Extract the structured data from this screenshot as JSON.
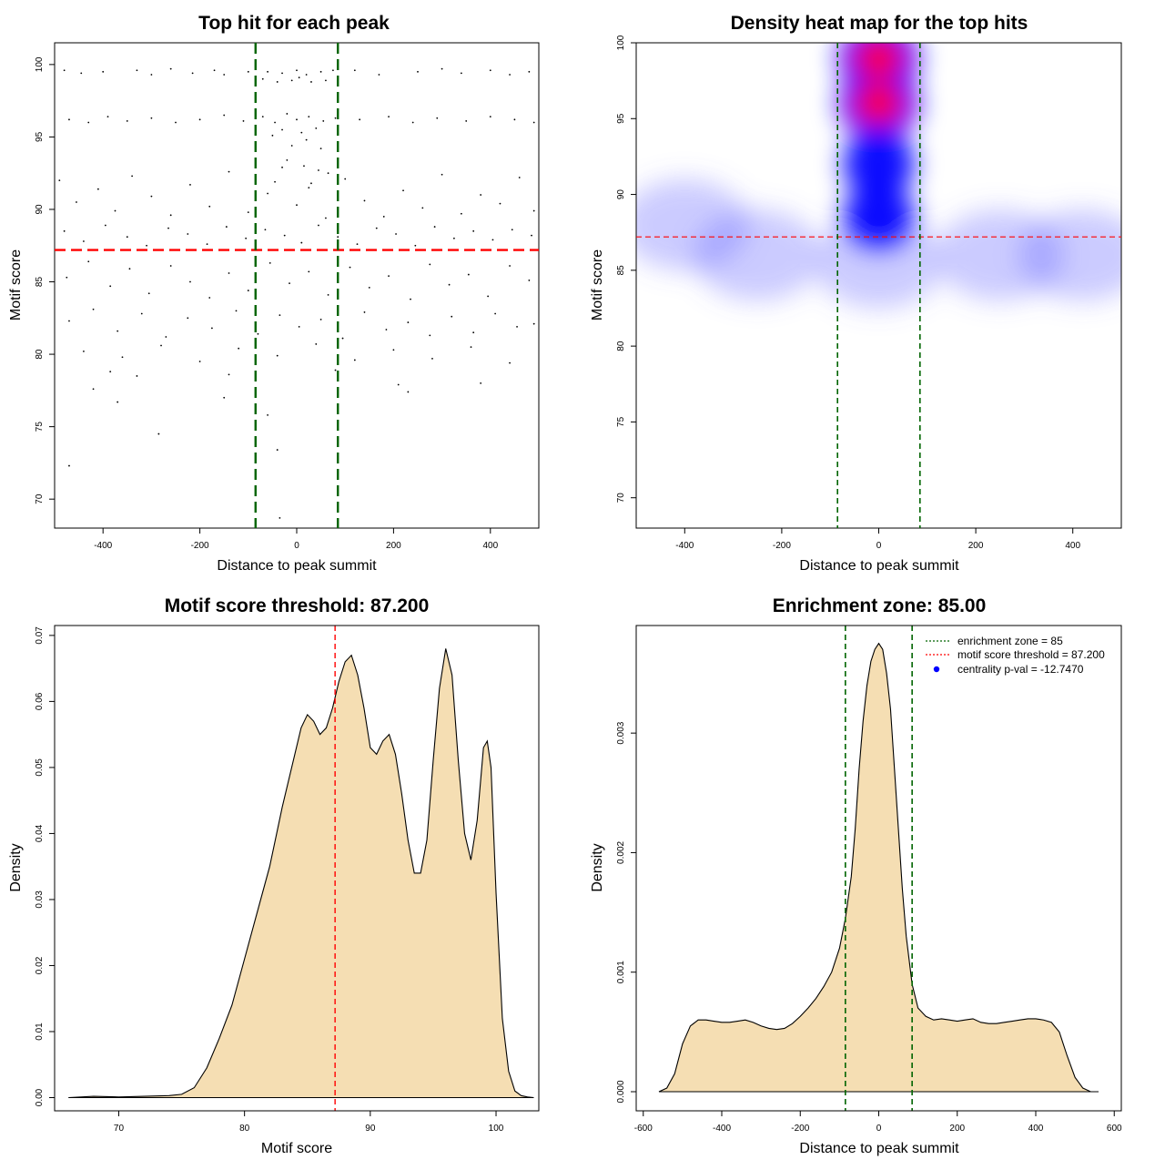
{
  "chart_data": [
    {
      "type": "scatter",
      "title": "Top hit for each peak",
      "xlabel": "Distance to peak summit",
      "ylabel": "Motif score",
      "xlim": [
        -500,
        500
      ],
      "ylim": [
        68,
        101.5
      ],
      "xticks": [
        -400,
        -200,
        0,
        200,
        400
      ],
      "yticks": [
        70,
        75,
        80,
        85,
        90,
        95,
        100
      ],
      "hline": {
        "y": 87.2,
        "color": "#ff0000"
      },
      "vlines": {
        "x": [
          -85,
          85
        ],
        "color": "#006400"
      },
      "point_color": "#000000",
      "points": [
        [
          -470,
          72.3
        ],
        [
          -285,
          74.5
        ],
        [
          -60,
          75.8
        ],
        [
          -40,
          73.4
        ],
        [
          -35,
          68.7
        ],
        [
          -370,
          76.7
        ],
        [
          -420,
          77.6
        ],
        [
          -150,
          77.0
        ],
        [
          -140,
          78.6
        ],
        [
          230,
          77.4
        ],
        [
          210,
          77.9
        ],
        [
          380,
          78.0
        ],
        [
          -385,
          78.8
        ],
        [
          80,
          78.9
        ],
        [
          -330,
          78.5
        ],
        [
          -480,
          99.6
        ],
        [
          -445,
          99.4
        ],
        [
          -400,
          99.5
        ],
        [
          -330,
          99.6
        ],
        [
          -300,
          99.3
        ],
        [
          -260,
          99.7
        ],
        [
          -215,
          99.4
        ],
        [
          -170,
          99.6
        ],
        [
          -150,
          99.3
        ],
        [
          -100,
          99.5
        ],
        [
          -60,
          99.5
        ],
        [
          -30,
          99.4
        ],
        [
          0,
          99.6
        ],
        [
          20,
          99.3
        ],
        [
          50,
          99.5
        ],
        [
          75,
          99.6
        ],
        [
          120,
          99.6
        ],
        [
          170,
          99.3
        ],
        [
          250,
          99.5
        ],
        [
          300,
          99.7
        ],
        [
          340,
          99.4
        ],
        [
          400,
          99.6
        ],
        [
          440,
          99.3
        ],
        [
          480,
          99.5
        ],
        [
          -40,
          98.8
        ],
        [
          -10,
          98.9
        ],
        [
          30,
          98.8
        ],
        [
          60,
          98.9
        ],
        [
          -70,
          99.0
        ],
        [
          5,
          99.1
        ],
        [
          -470,
          96.2
        ],
        [
          -430,
          96.0
        ],
        [
          -390,
          96.4
        ],
        [
          -350,
          96.1
        ],
        [
          -300,
          96.3
        ],
        [
          -250,
          96.0
        ],
        [
          -200,
          96.2
        ],
        [
          -150,
          96.5
        ],
        [
          -110,
          96.1
        ],
        [
          -70,
          96.4
        ],
        [
          -45,
          96.0
        ],
        [
          -20,
          96.6
        ],
        [
          0,
          96.2
        ],
        [
          25,
          96.4
        ],
        [
          55,
          96.1
        ],
        [
          80,
          96.3
        ],
        [
          130,
          96.2
        ],
        [
          190,
          96.4
        ],
        [
          240,
          96.0
        ],
        [
          290,
          96.3
        ],
        [
          350,
          96.1
        ],
        [
          400,
          96.4
        ],
        [
          450,
          96.2
        ],
        [
          490,
          96.0
        ],
        [
          -30,
          95.5
        ],
        [
          10,
          95.3
        ],
        [
          40,
          95.6
        ],
        [
          -50,
          95.1
        ],
        [
          20,
          94.8
        ],
        [
          -10,
          94.4
        ],
        [
          50,
          94.2
        ],
        [
          -490,
          92.0
        ],
        [
          -455,
          90.5
        ],
        [
          -410,
          91.4
        ],
        [
          -375,
          89.9
        ],
        [
          -340,
          92.3
        ],
        [
          -300,
          90.9
        ],
        [
          -260,
          89.6
        ],
        [
          -220,
          91.7
        ],
        [
          -180,
          90.2
        ],
        [
          -140,
          92.6
        ],
        [
          -100,
          89.8
        ],
        [
          -60,
          91.1
        ],
        [
          -30,
          92.9
        ],
        [
          0,
          90.3
        ],
        [
          30,
          91.8
        ],
        [
          60,
          89.4
        ],
        [
          100,
          92.1
        ],
        [
          140,
          90.6
        ],
        [
          180,
          89.5
        ],
        [
          220,
          91.3
        ],
        [
          260,
          90.1
        ],
        [
          300,
          92.4
        ],
        [
          340,
          89.7
        ],
        [
          380,
          91.0
        ],
        [
          420,
          90.4
        ],
        [
          460,
          92.2
        ],
        [
          490,
          89.9
        ],
        [
          -20,
          93.4
        ],
        [
          15,
          93.0
        ],
        [
          45,
          92.7
        ],
        [
          -45,
          91.9
        ],
        [
          25,
          91.5
        ],
        [
          65,
          92.5
        ],
        [
          -480,
          88.5
        ],
        [
          -440,
          87.8
        ],
        [
          -395,
          88.9
        ],
        [
          -350,
          88.1
        ],
        [
          -310,
          87.5
        ],
        [
          -265,
          88.7
        ],
        [
          -225,
          88.3
        ],
        [
          -185,
          87.6
        ],
        [
          -145,
          88.8
        ],
        [
          -105,
          88.0
        ],
        [
          -65,
          88.6
        ],
        [
          -25,
          88.2
        ],
        [
          10,
          87.7
        ],
        [
          45,
          88.9
        ],
        [
          85,
          88.1
        ],
        [
          125,
          87.6
        ],
        [
          165,
          88.7
        ],
        [
          205,
          88.3
        ],
        [
          245,
          87.5
        ],
        [
          285,
          88.8
        ],
        [
          325,
          88.0
        ],
        [
          365,
          88.5
        ],
        [
          405,
          87.9
        ],
        [
          445,
          88.6
        ],
        [
          485,
          88.2
        ],
        [
          -475,
          85.3
        ],
        [
          -430,
          86.4
        ],
        [
          -385,
          84.7
        ],
        [
          -345,
          85.9
        ],
        [
          -305,
          84.2
        ],
        [
          -260,
          86.1
        ],
        [
          -220,
          85.0
        ],
        [
          -180,
          83.9
        ],
        [
          -140,
          85.6
        ],
        [
          -100,
          84.4
        ],
        [
          -55,
          86.3
        ],
        [
          -15,
          84.9
        ],
        [
          25,
          85.7
        ],
        [
          65,
          84.1
        ],
        [
          110,
          86.0
        ],
        [
          150,
          84.6
        ],
        [
          190,
          85.4
        ],
        [
          235,
          83.8
        ],
        [
          275,
          86.2
        ],
        [
          315,
          84.8
        ],
        [
          355,
          85.5
        ],
        [
          395,
          84.0
        ],
        [
          440,
          86.1
        ],
        [
          480,
          85.1
        ],
        [
          -470,
          82.3
        ],
        [
          -420,
          83.1
        ],
        [
          -370,
          81.6
        ],
        [
          -320,
          82.8
        ],
        [
          -270,
          81.2
        ],
        [
          -225,
          82.5
        ],
        [
          -175,
          81.8
        ],
        [
          -125,
          83.0
        ],
        [
          -80,
          81.4
        ],
        [
          -35,
          82.7
        ],
        [
          5,
          81.9
        ],
        [
          50,
          82.4
        ],
        [
          95,
          81.1
        ],
        [
          140,
          82.9
        ],
        [
          185,
          81.7
        ],
        [
          230,
          82.2
        ],
        [
          275,
          81.3
        ],
        [
          320,
          82.6
        ],
        [
          365,
          81.5
        ],
        [
          410,
          82.8
        ],
        [
          455,
          81.9
        ],
        [
          490,
          82.1
        ],
        [
          -440,
          80.2
        ],
        [
          -360,
          79.8
        ],
        [
          -280,
          80.6
        ],
        [
          -200,
          79.5
        ],
        [
          -120,
          80.4
        ],
        [
          -40,
          79.9
        ],
        [
          40,
          80.7
        ],
        [
          120,
          79.6
        ],
        [
          200,
          80.3
        ],
        [
          280,
          79.7
        ],
        [
          360,
          80.5
        ],
        [
          440,
          79.4
        ]
      ]
    },
    {
      "type": "heatmap",
      "title": "Density heat map for the top hits",
      "xlabel": "Distance to peak summit",
      "ylabel": "Motif score",
      "xlim": [
        -500,
        500
      ],
      "ylim": [
        68,
        100
      ],
      "xticks": [
        -400,
        -200,
        0,
        200,
        400
      ],
      "yticks": [
        70,
        75,
        80,
        85,
        90,
        95,
        100
      ],
      "hline": {
        "y": 87.2,
        "color": "#ff0000"
      },
      "vlines": {
        "x": [
          -85,
          85
        ],
        "color": "#006400"
      },
      "hotspots": [
        {
          "x": 0,
          "y": 99.0,
          "level": "high"
        },
        {
          "x": 0,
          "y": 96.0,
          "level": "high"
        },
        {
          "x": 0,
          "y": 92.0,
          "level": "medium"
        },
        {
          "x": 0,
          "y": 88.5,
          "level": "medium"
        },
        {
          "x": 0,
          "y": 85.5,
          "level": "low"
        },
        {
          "x": -400,
          "y": 88.0,
          "level": "low"
        },
        {
          "x": -250,
          "y": 86.0,
          "level": "low"
        },
        {
          "x": 250,
          "y": 86.0,
          "level": "low"
        },
        {
          "x": 420,
          "y": 86.0,
          "level": "low"
        }
      ],
      "colors": [
        "#ffffff",
        "#0000ff",
        "#ff0000"
      ]
    },
    {
      "type": "area",
      "title": "Motif score threshold: 87.200",
      "xlabel": "Motif score",
      "ylabel": "Density",
      "xlim": [
        64.9,
        103.4
      ],
      "ylim": [
        -0.002,
        0.0715
      ],
      "xticks": [
        70,
        80,
        90,
        100
      ],
      "yticks": [
        0.0,
        0.01,
        0.02,
        0.03,
        0.04,
        0.05,
        0.06,
        0.07
      ],
      "ytick_labels": [
        "0.00",
        "0.01",
        "0.02",
        "0.03",
        "0.04",
        "0.05",
        "0.06",
        "0.07"
      ],
      "vline": {
        "x": 87.2,
        "color": "#ff0000"
      },
      "fill": "#f5deb3",
      "x": [
        66,
        68,
        70,
        72,
        74,
        75,
        76,
        77,
        78,
        79,
        80,
        81,
        82,
        83,
        84,
        84.5,
        85,
        85.5,
        86,
        86.5,
        87,
        87.5,
        88,
        88.5,
        89,
        89.5,
        90,
        90.5,
        91,
        91.5,
        92,
        92.5,
        93,
        93.5,
        94,
        94.5,
        95,
        95.5,
        96,
        96.5,
        97,
        97.5,
        98,
        98.5,
        99,
        99.3,
        99.6,
        100,
        100.5,
        101,
        101.5,
        102,
        102.5,
        103
      ],
      "y": [
        0.0,
        0.0002,
        0.0001,
        0.0002,
        0.0003,
        0.0005,
        0.0015,
        0.0045,
        0.009,
        0.014,
        0.021,
        0.028,
        0.035,
        0.044,
        0.052,
        0.056,
        0.058,
        0.057,
        0.055,
        0.056,
        0.059,
        0.063,
        0.066,
        0.067,
        0.064,
        0.059,
        0.053,
        0.052,
        0.054,
        0.055,
        0.052,
        0.046,
        0.039,
        0.034,
        0.034,
        0.039,
        0.051,
        0.062,
        0.068,
        0.064,
        0.051,
        0.04,
        0.036,
        0.042,
        0.053,
        0.054,
        0.05,
        0.031,
        0.012,
        0.004,
        0.001,
        0.0003,
        0.0001,
        0.0
      ]
    },
    {
      "type": "area",
      "title": "Enrichment zone: 85.00",
      "xlabel": "Distance to peak summit",
      "ylabel": "Density",
      "xlim": [
        -618,
        618
      ],
      "ylim": [
        -0.00016,
        0.0039
      ],
      "xticks": [
        -600,
        -400,
        -200,
        0,
        200,
        400,
        600
      ],
      "yticks": [
        0.0,
        0.001,
        0.002,
        0.003
      ],
      "ytick_labels": [
        "0.000",
        "0.001",
        "0.002",
        "0.003"
      ],
      "vlines": {
        "x": [
          -85,
          85
        ],
        "color": "#006400"
      },
      "fill": "#f5deb3",
      "x": [
        -560,
        -540,
        -520,
        -500,
        -480,
        -460,
        -440,
        -420,
        -400,
        -380,
        -360,
        -340,
        -320,
        -300,
        -280,
        -260,
        -240,
        -220,
        -200,
        -180,
        -160,
        -140,
        -120,
        -100,
        -85,
        -70,
        -60,
        -50,
        -40,
        -30,
        -20,
        -10,
        0,
        10,
        20,
        30,
        40,
        50,
        60,
        70,
        85,
        100,
        120,
        140,
        160,
        180,
        200,
        220,
        240,
        260,
        280,
        300,
        320,
        340,
        360,
        380,
        400,
        420,
        440,
        460,
        480,
        500,
        520,
        540,
        560
      ],
      "y": [
        0.0,
        3e-05,
        0.00015,
        0.0004,
        0.00055,
        0.0006,
        0.0006,
        0.00059,
        0.00058,
        0.00058,
        0.00059,
        0.0006,
        0.00058,
        0.00055,
        0.00053,
        0.00052,
        0.00053,
        0.00057,
        0.00063,
        0.0007,
        0.00078,
        0.00088,
        0.001,
        0.0012,
        0.00145,
        0.0018,
        0.0022,
        0.0027,
        0.0031,
        0.0034,
        0.0036,
        0.0037,
        0.00375,
        0.0037,
        0.0035,
        0.0032,
        0.0027,
        0.0022,
        0.0017,
        0.0013,
        0.0009,
        0.0007,
        0.00063,
        0.0006,
        0.00061,
        0.0006,
        0.00059,
        0.0006,
        0.00061,
        0.00058,
        0.00057,
        0.00057,
        0.00058,
        0.00059,
        0.0006,
        0.00061,
        0.00061,
        0.0006,
        0.00058,
        0.0005,
        0.0003,
        0.00012,
        3e-05,
        0.0,
        0.0
      ],
      "legend": {
        "position": "top-right",
        "items": [
          {
            "label": "enrichment zone = 85",
            "color": "#006400",
            "style": "dotted-line"
          },
          {
            "label": "motif score threshold = 87.200",
            "color": "#ff0000",
            "style": "dotted-line"
          },
          {
            "label": "centrality p-val = -12.7470",
            "color": "#0000ff",
            "style": "point"
          }
        ]
      }
    }
  ]
}
